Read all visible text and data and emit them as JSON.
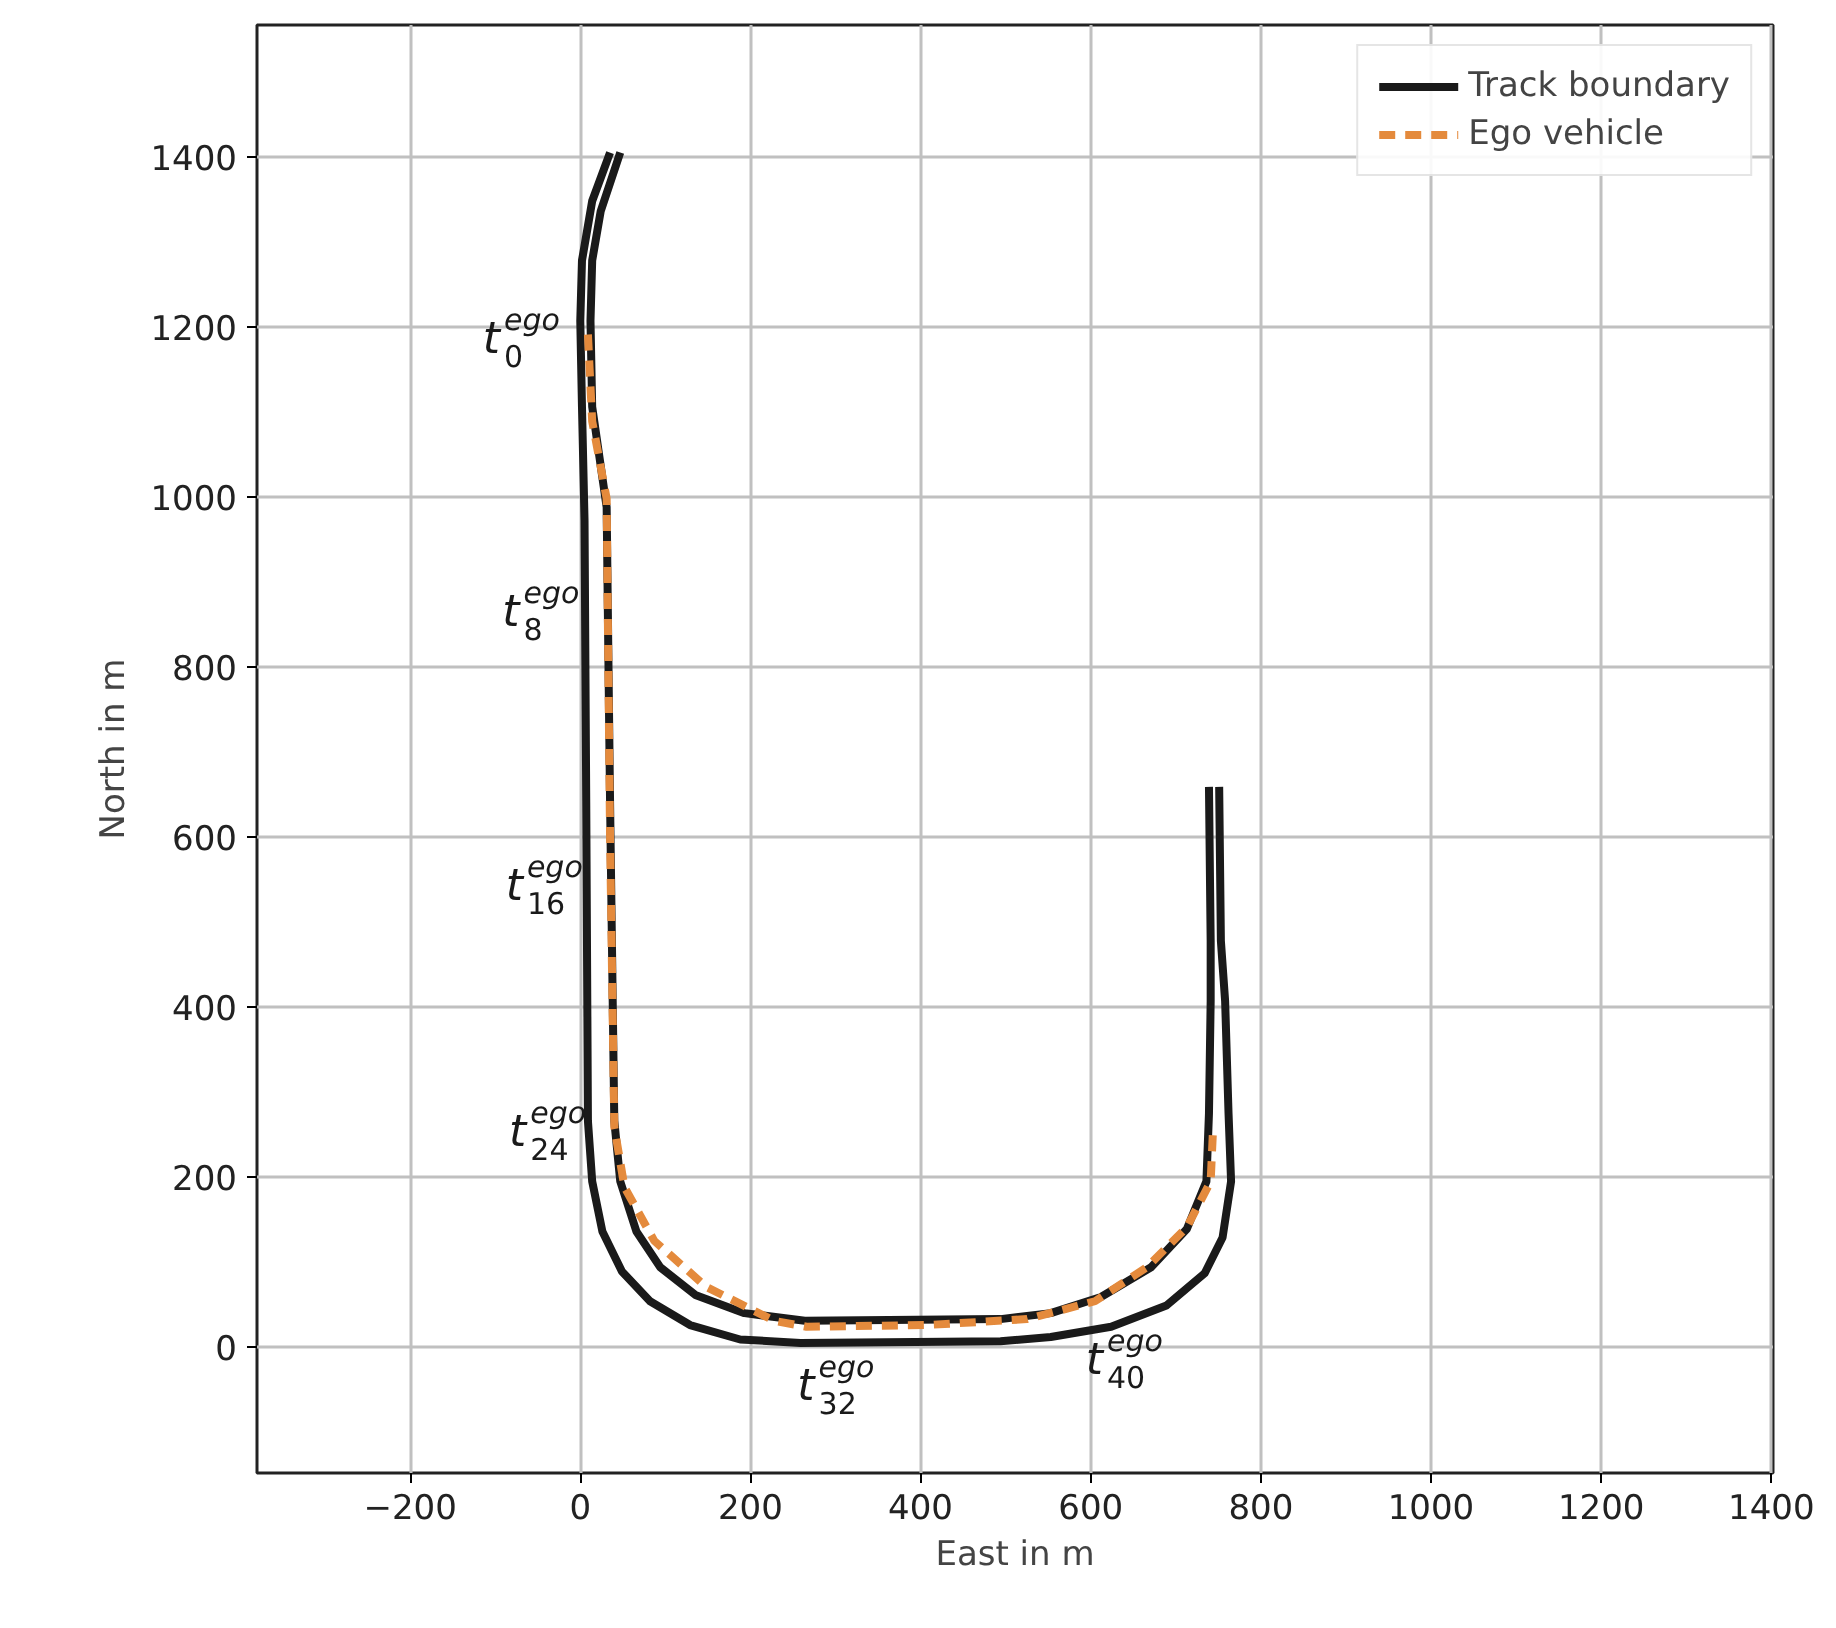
{
  "chart_data": {
    "type": "line",
    "xlabel": "East in m",
    "ylabel": "North in m",
    "xlim": [
      -380,
      1402
    ],
    "ylim": [
      -148,
      1555
    ],
    "xticks": [
      -200,
      0,
      200,
      400,
      600,
      800,
      1000,
      1200,
      1400
    ],
    "yticks": [
      0,
      200,
      400,
      600,
      800,
      1000,
      1200,
      1400
    ],
    "grid": true,
    "legend": "top right",
    "series": [
      {
        "name": "Track boundary",
        "color": "#1a1a1a",
        "x": [
          35,
          14,
          2,
          0,
          2,
          5,
          7,
          9,
          14,
          26,
          49,
          82,
          129,
          188,
          259,
          494,
          553,
          624,
          689,
          734,
          755,
          765,
          762,
          758,
          753,
          751
        ],
        "values": [
          1405,
          1348,
          1278,
          1207,
          1106,
          972,
          642,
          266,
          195,
          136,
          89,
          54,
          26,
          9,
          5,
          7,
          12,
          24,
          49,
          87,
          129,
          195,
          275,
          407,
          478,
          659
        ]
      },
      {
        "color": "#1a1a1a",
        "x": [
          47,
          24,
          14,
          12,
          14,
          31,
          35,
          40,
          47,
          66,
          94,
          136,
          193,
          264,
          494,
          553,
          612,
          671,
          713,
          736,
          739,
          741,
          741,
          739
        ],
        "values": [
          1405,
          1336,
          1278,
          1207,
          1106,
          988,
          642,
          266,
          195,
          136,
          94,
          61,
          40,
          31,
          33,
          40,
          59,
          94,
          139,
          195,
          275,
          407,
          478,
          659
        ]
      },
      {
        "name": "Ego vehicle",
        "color": "#e48a3c",
        "line_style": "dashed",
        "x": [
          9,
          14,
          31,
          35,
          40,
          52,
          87,
          148,
          228,
          266,
          407,
          525,
          605,
          666,
          713,
          741,
          744
        ],
        "values": [
          1191,
          1089,
          998,
          602,
          259,
          188,
          125,
          71,
          31,
          24,
          26,
          33,
          54,
          94,
          141,
          195,
          261
        ]
      }
    ],
    "annotations": [
      {
        "text": "t$_{0}$$^{ego}$",
        "x": 9,
        "y": 1191
      },
      {
        "text": "t$_{8}$$^{ego}$",
        "x": 32,
        "y": 871
      },
      {
        "text": "t$_{16}$$^{ego}$",
        "x": 36,
        "y": 548
      },
      {
        "text": "t$_{24}$$^{ego}$",
        "x": 40,
        "y": 259
      },
      {
        "text": "t$_{32}$$^{ego}$",
        "x": 266,
        "y": 24
      },
      {
        "text": "t$_{40}$$^{ego}$",
        "x": 605,
        "y": 54
      }
    ]
  }
}
